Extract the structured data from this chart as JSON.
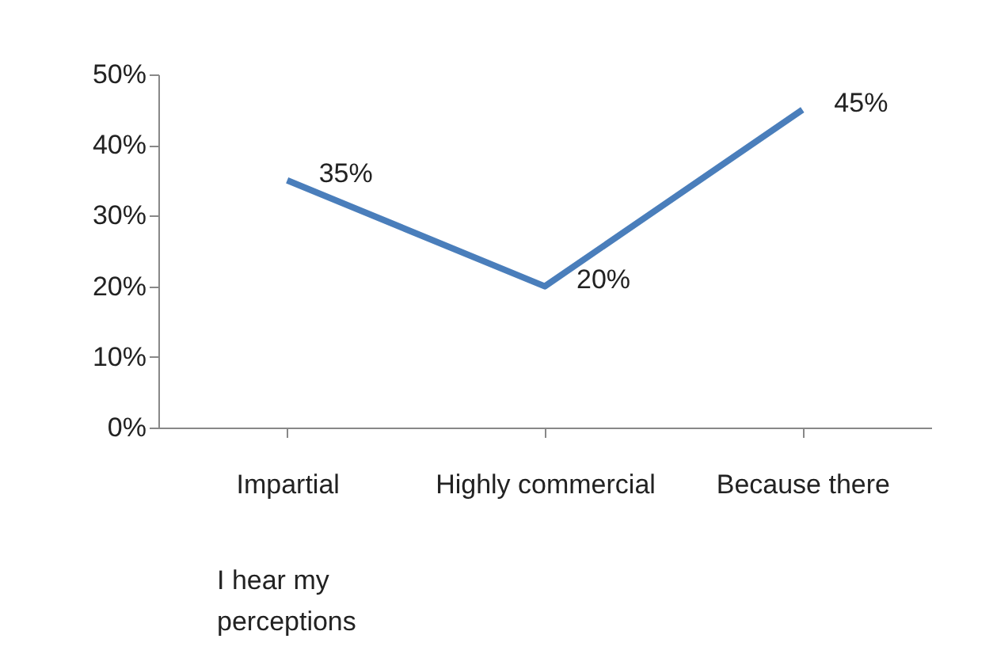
{
  "chart_data": {
    "type": "line",
    "categories": [
      "Impartial",
      "Highly commercial",
      "Because there"
    ],
    "series": [
      {
        "color": "#4a7ebb",
        "values": [
          35,
          20,
          45
        ],
        "value_labels": [
          "35%",
          "20%",
          "45%"
        ]
      }
    ],
    "ylim": [
      0,
      50
    ],
    "yticks": [
      {
        "value": 0,
        "label": "0%"
      },
      {
        "value": 10,
        "label": "10%"
      },
      {
        "value": 20,
        "label": "20%"
      },
      {
        "value": 30,
        "label": "30%"
      },
      {
        "value": 40,
        "label": "40%"
      },
      {
        "value": 50,
        "label": "50%"
      }
    ],
    "grid": false,
    "legend": false,
    "marker": "none",
    "line_style": "solid",
    "annotations": [
      "I hear my perceptions"
    ]
  }
}
